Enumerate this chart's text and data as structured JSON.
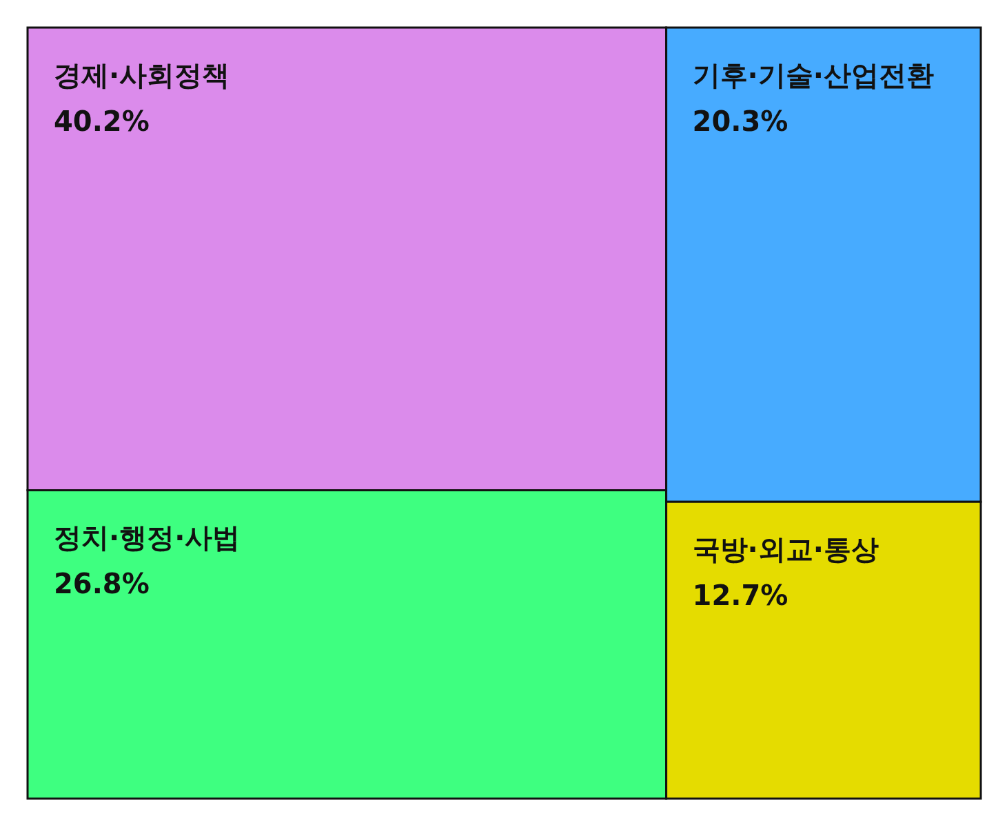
{
  "chart_data": {
    "type": "other",
    "categories": [
      "경제·사회정책",
      "정치·행정·사법",
      "기후·기술·산업전환",
      "국방·외교·통상"
    ],
    "values": [
      40.2,
      26.8,
      20.3,
      12.7
    ],
    "colors": [
      "#db8beb",
      "#3eff80",
      "#47abff",
      "#e5dc00"
    ],
    "value_labels": [
      "40.2%",
      "26.8%",
      "20.3%",
      "12.7%"
    ]
  }
}
